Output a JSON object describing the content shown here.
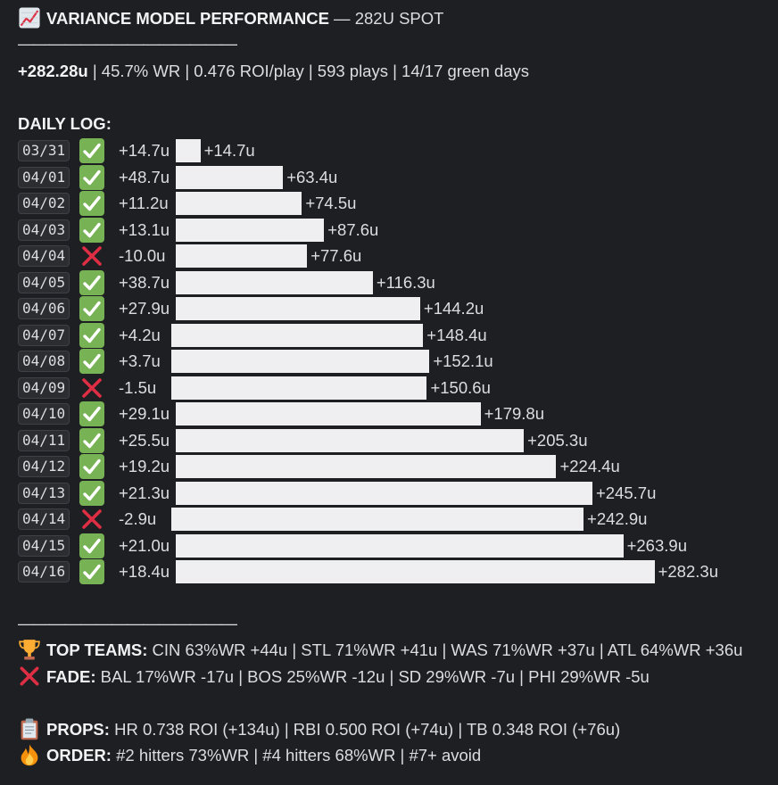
{
  "header": {
    "title_icon": "chart-increasing-icon",
    "title_bold": "VARIANCE MODEL PERFORMANCE",
    "title_rest": " — 282U SPOT",
    "divider": "——————————————",
    "stats_bold": "+282.28u",
    "stats_rest": " | 45.7% WR | 0.476 ROI/play | 593 plays | 14/17 green days"
  },
  "log": {
    "heading": "DAILY LOG:",
    "rows": [
      {
        "date": "03/31",
        "result": "win",
        "delta": "+14.7u",
        "cum_label": "+14.7u",
        "cum": 14.7
      },
      {
        "date": "04/01",
        "result": "win",
        "delta": "+48.7u",
        "cum_label": "+63.4u",
        "cum": 63.4
      },
      {
        "date": "04/02",
        "result": "win",
        "delta": "+11.2u",
        "cum_label": "+74.5u",
        "cum": 74.5
      },
      {
        "date": "04/03",
        "result": "win",
        "delta": "+13.1u",
        "cum_label": "+87.6u",
        "cum": 87.6
      },
      {
        "date": "04/04",
        "result": "loss",
        "delta": "-10.0u",
        "cum_label": "+77.6u",
        "cum": 77.6
      },
      {
        "date": "04/05",
        "result": "win",
        "delta": "+38.7u",
        "cum_label": "+116.3u",
        "cum": 116.3
      },
      {
        "date": "04/06",
        "result": "win",
        "delta": "+27.9u",
        "cum_label": "+144.2u",
        "cum": 144.2
      },
      {
        "date": "04/07",
        "result": "win",
        "delta": "+4.2u",
        "cum_label": "+148.4u",
        "cum": 148.4
      },
      {
        "date": "04/08",
        "result": "win",
        "delta": "+3.7u",
        "cum_label": "+152.1u",
        "cum": 152.1
      },
      {
        "date": "04/09",
        "result": "loss",
        "delta": "-1.5u",
        "cum_label": "+150.6u",
        "cum": 150.6
      },
      {
        "date": "04/10",
        "result": "win",
        "delta": "+29.1u",
        "cum_label": "+179.8u",
        "cum": 179.8
      },
      {
        "date": "04/11",
        "result": "win",
        "delta": "+25.5u",
        "cum_label": "+205.3u",
        "cum": 205.3
      },
      {
        "date": "04/12",
        "result": "win",
        "delta": "+19.2u",
        "cum_label": "+224.4u",
        "cum": 224.4
      },
      {
        "date": "04/13",
        "result": "win",
        "delta": "+21.3u",
        "cum_label": "+245.7u",
        "cum": 245.7
      },
      {
        "date": "04/14",
        "result": "loss",
        "delta": "-2.9u",
        "cum_label": "+242.9u",
        "cum": 242.9
      },
      {
        "date": "04/15",
        "result": "win",
        "delta": "+21.0u",
        "cum_label": "+263.9u",
        "cum": 263.9
      },
      {
        "date": "04/16",
        "result": "win",
        "delta": "+18.4u",
        "cum_label": "+282.3u",
        "cum": 282.3
      }
    ]
  },
  "footer": {
    "divider": "——————————————",
    "top_teams_icon": "trophy-icon",
    "top_teams_label": "TOP TEAMS:",
    "top_teams_text": " CIN 63%WR +44u | STL 71%WR +41u | WAS 71%WR +37u | ATL 64%WR +36u",
    "fade_icon": "cross-mark-icon",
    "fade_label": "FADE:",
    "fade_text": " BAL 17%WR -17u | BOS 25%WR -12u | SD 29%WR -7u | PHI 29%WR -5u",
    "props_icon": "clipboard-icon",
    "props_label": "PROPS:",
    "props_text": " HR 0.738 ROI (+134u) | RBI 0.500 ROI (+74u) | TB 0.348 ROI (+76u)",
    "order_icon": "fire-icon",
    "order_label": "ORDER:",
    "order_text": " #2 hitters 73%WR | #4 hitters 68%WR | #7+ avoid"
  },
  "colors": {
    "background": "#1e1f22",
    "text": "#dbdee1",
    "win_box": "#77b255",
    "loss_cross": "#dd2e44",
    "bar": "#efeff1"
  }
}
